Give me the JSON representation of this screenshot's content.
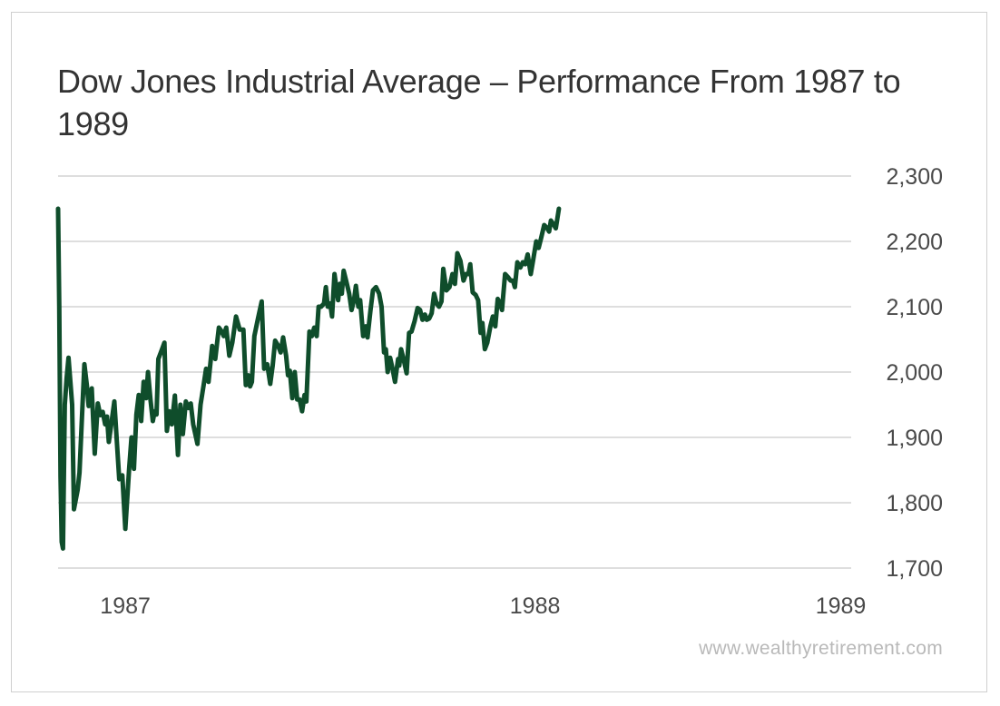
{
  "chart_data": {
    "type": "line",
    "title": "Dow Jones Industrial Average – Performance From 1987 to 1989",
    "xlabel": "",
    "ylabel": "",
    "ylim": [
      1700,
      2300
    ],
    "yticks": [
      2300,
      2200,
      2100,
      2000,
      1900,
      1800,
      1700
    ],
    "ytick_labels": [
      "2,300",
      "2,200",
      "2,100",
      "2,000",
      "1,900",
      "1,800",
      "1,700"
    ],
    "xticks": [
      1987.83,
      1988.5,
      1989.0
    ],
    "xtick_labels": [
      "1987",
      "1988",
      "1989"
    ],
    "xlim": [
      1987.72,
      1989.02
    ],
    "grid": true,
    "color": "#0f4d2b",
    "series": [
      {
        "values": [
          [
            1987.72,
            2250
          ],
          [
            1987.722,
            2100
          ],
          [
            1987.724,
            1840
          ],
          [
            1987.726,
            1740
          ],
          [
            1987.728,
            1730
          ],
          [
            1987.731,
            1950
          ],
          [
            1987.734,
            1990
          ],
          [
            1987.737,
            2022
          ],
          [
            1987.743,
            1950
          ],
          [
            1987.746,
            1790
          ],
          [
            1987.752,
            1820
          ],
          [
            1987.755,
            1846
          ],
          [
            1987.759,
            1930
          ],
          [
            1987.763,
            2012
          ],
          [
            1987.767,
            1980
          ],
          [
            1987.77,
            1948
          ],
          [
            1987.775,
            1975
          ],
          [
            1987.78,
            1875
          ],
          [
            1987.785,
            1952
          ],
          [
            1987.789,
            1934
          ],
          [
            1987.793,
            1939
          ],
          [
            1987.797,
            1920
          ],
          [
            1987.8,
            1932
          ],
          [
            1987.803,
            1893
          ],
          [
            1987.807,
            1920
          ],
          [
            1987.812,
            1955
          ],
          [
            1987.816,
            1895
          ],
          [
            1987.82,
            1836
          ],
          [
            1987.825,
            1842
          ],
          [
            1987.83,
            1760
          ],
          [
            1987.836,
            1850
          ],
          [
            1987.84,
            1900
          ],
          [
            1987.844,
            1852
          ],
          [
            1987.848,
            1935
          ],
          [
            1987.852,
            1965
          ],
          [
            1987.856,
            1925
          ],
          [
            1987.86,
            1985
          ],
          [
            1987.864,
            1960
          ],
          [
            1987.867,
            2000
          ],
          [
            1987.871,
            1958
          ],
          [
            1987.875,
            1925
          ],
          [
            1987.878,
            1940
          ],
          [
            1987.881,
            1935
          ],
          [
            1987.884,
            2020
          ],
          [
            1987.89,
            2035
          ],
          [
            1987.894,
            2045
          ],
          [
            1987.898,
            1910
          ],
          [
            1987.902,
            1940
          ],
          [
            1987.906,
            1920
          ],
          [
            1987.911,
            1964
          ],
          [
            1987.916,
            1873
          ],
          [
            1987.92,
            1950
          ],
          [
            1987.924,
            1905
          ],
          [
            1987.929,
            1955
          ],
          [
            1987.933,
            1945
          ],
          [
            1987.937,
            1952
          ],
          [
            1987.941,
            1920
          ],
          [
            1987.948,
            1890
          ],
          [
            1987.953,
            1950
          ],
          [
            1987.958,
            1980
          ],
          [
            1987.962,
            2005
          ],
          [
            1987.966,
            1985
          ],
          [
            1987.972,
            2040
          ],
          [
            1987.977,
            2020
          ],
          [
            1987.983,
            2068
          ],
          [
            1987.987,
            2063
          ],
          [
            1987.991,
            2055
          ],
          [
            1987.995,
            2068
          ],
          [
            1988.0,
            2025
          ],
          [
            1988.005,
            2045
          ],
          [
            1988.011,
            2085
          ],
          [
            1988.017,
            2065
          ],
          [
            1988.023,
            2065
          ],
          [
            1988.027,
            1980
          ],
          [
            1988.031,
            1995
          ],
          [
            1988.034,
            1978
          ],
          [
            1988.037,
            1985
          ],
          [
            1988.041,
            2055
          ],
          [
            1988.047,
            2082
          ],
          [
            1988.053,
            2108
          ],
          [
            1988.057,
            2005
          ],
          [
            1988.062,
            2012
          ],
          [
            1988.067,
            1982
          ],
          [
            1988.071,
            2010
          ],
          [
            1988.075,
            2048
          ],
          [
            1988.08,
            2040
          ],
          [
            1988.084,
            2030
          ],
          [
            1988.088,
            2053
          ],
          [
            1988.093,
            2025
          ],
          [
            1988.096,
            1995
          ],
          [
            1988.099,
            2002
          ],
          [
            1988.103,
            1960
          ],
          [
            1988.107,
            2000
          ],
          [
            1988.111,
            1958
          ],
          [
            1988.115,
            1958
          ],
          [
            1988.119,
            1940
          ],
          [
            1988.123,
            1965
          ],
          [
            1988.126,
            1955
          ],
          [
            1988.131,
            2062
          ],
          [
            1988.135,
            2055
          ],
          [
            1988.139,
            2068
          ],
          [
            1988.143,
            2055
          ],
          [
            1988.146,
            2100
          ],
          [
            1988.15,
            2100
          ],
          [
            1988.155,
            2105
          ],
          [
            1988.158,
            2130
          ],
          [
            1988.161,
            2100
          ],
          [
            1988.165,
            2105
          ],
          [
            1988.168,
            2085
          ],
          [
            1988.172,
            2150
          ],
          [
            1988.178,
            2110
          ],
          [
            1988.181,
            2135
          ],
          [
            1988.184,
            2120
          ],
          [
            1988.187,
            2155
          ],
          [
            1988.191,
            2140
          ],
          [
            1988.196,
            2120
          ],
          [
            1988.2,
            2095
          ],
          [
            1988.204,
            2110
          ],
          [
            1988.207,
            2132
          ],
          [
            1988.211,
            2100
          ],
          [
            1988.214,
            2110
          ],
          [
            1988.219,
            2055
          ],
          [
            1988.223,
            2070
          ],
          [
            1988.226,
            2053
          ],
          [
            1988.231,
            2095
          ],
          [
            1988.235,
            2125
          ],
          [
            1988.24,
            2130
          ],
          [
            1988.245,
            2120
          ],
          [
            1988.249,
            2100
          ],
          [
            1988.253,
            2030
          ],
          [
            1988.256,
            2035
          ],
          [
            1988.259,
            2000
          ],
          [
            1988.263,
            2022
          ],
          [
            1988.267,
            2005
          ],
          [
            1988.271,
            1985
          ],
          [
            1988.276,
            2020
          ],
          [
            1988.278,
            2010
          ],
          [
            1988.281,
            2035
          ],
          [
            1988.285,
            2020
          ],
          [
            1988.29,
            1998
          ],
          [
            1988.294,
            2060
          ],
          [
            1988.298,
            2062
          ],
          [
            1988.303,
            2078
          ],
          [
            1988.308,
            2098
          ],
          [
            1988.312,
            2095
          ],
          [
            1988.316,
            2080
          ],
          [
            1988.32,
            2088
          ],
          [
            1988.323,
            2080
          ],
          [
            1988.327,
            2082
          ],
          [
            1988.331,
            2090
          ],
          [
            1988.335,
            2120
          ],
          [
            1988.339,
            2105
          ],
          [
            1988.343,
            2100
          ],
          [
            1988.347,
            2108
          ],
          [
            1988.35,
            2158
          ],
          [
            1988.355,
            2125
          ],
          [
            1988.36,
            2130
          ],
          [
            1988.365,
            2150
          ],
          [
            1988.369,
            2135
          ],
          [
            1988.373,
            2182
          ],
          [
            1988.378,
            2170
          ],
          [
            1988.383,
            2140
          ],
          [
            1988.387,
            2150
          ],
          [
            1988.391,
            2150
          ],
          [
            1988.394,
            2165
          ],
          [
            1988.398,
            2122
          ],
          [
            1988.403,
            2118
          ],
          [
            1988.407,
            2110
          ],
          [
            1988.411,
            2060
          ],
          [
            1988.414,
            2075
          ],
          [
            1988.418,
            2035
          ],
          [
            1988.422,
            2045
          ],
          [
            1988.427,
            2070
          ],
          [
            1988.431,
            2085
          ],
          [
            1988.435,
            2070
          ],
          [
            1988.439,
            2112
          ],
          [
            1988.443,
            2105
          ],
          [
            1988.446,
            2095
          ],
          [
            1988.451,
            2150
          ],
          [
            1988.456,
            2145
          ],
          [
            1988.46,
            2140
          ],
          [
            1988.464,
            2140
          ],
          [
            1988.467,
            2130
          ],
          [
            1988.471,
            2168
          ],
          [
            1988.476,
            2160
          ],
          [
            1988.48,
            2168
          ],
          [
            1988.484,
            2165
          ],
          [
            1988.488,
            2180
          ],
          [
            1988.493,
            2150
          ],
          [
            1988.497,
            2172
          ],
          [
            1988.502,
            2200
          ],
          [
            1988.506,
            2190
          ],
          [
            1988.51,
            2205
          ],
          [
            1988.515,
            2225
          ],
          [
            1988.52,
            2220
          ],
          [
            1988.523,
            2215
          ],
          [
            1988.526,
            2232
          ],
          [
            1988.531,
            2225
          ],
          [
            1988.534,
            2220
          ],
          [
            1988.539,
            2250
          ]
        ]
      }
    ]
  },
  "source": "www.wealthyretirement.com"
}
